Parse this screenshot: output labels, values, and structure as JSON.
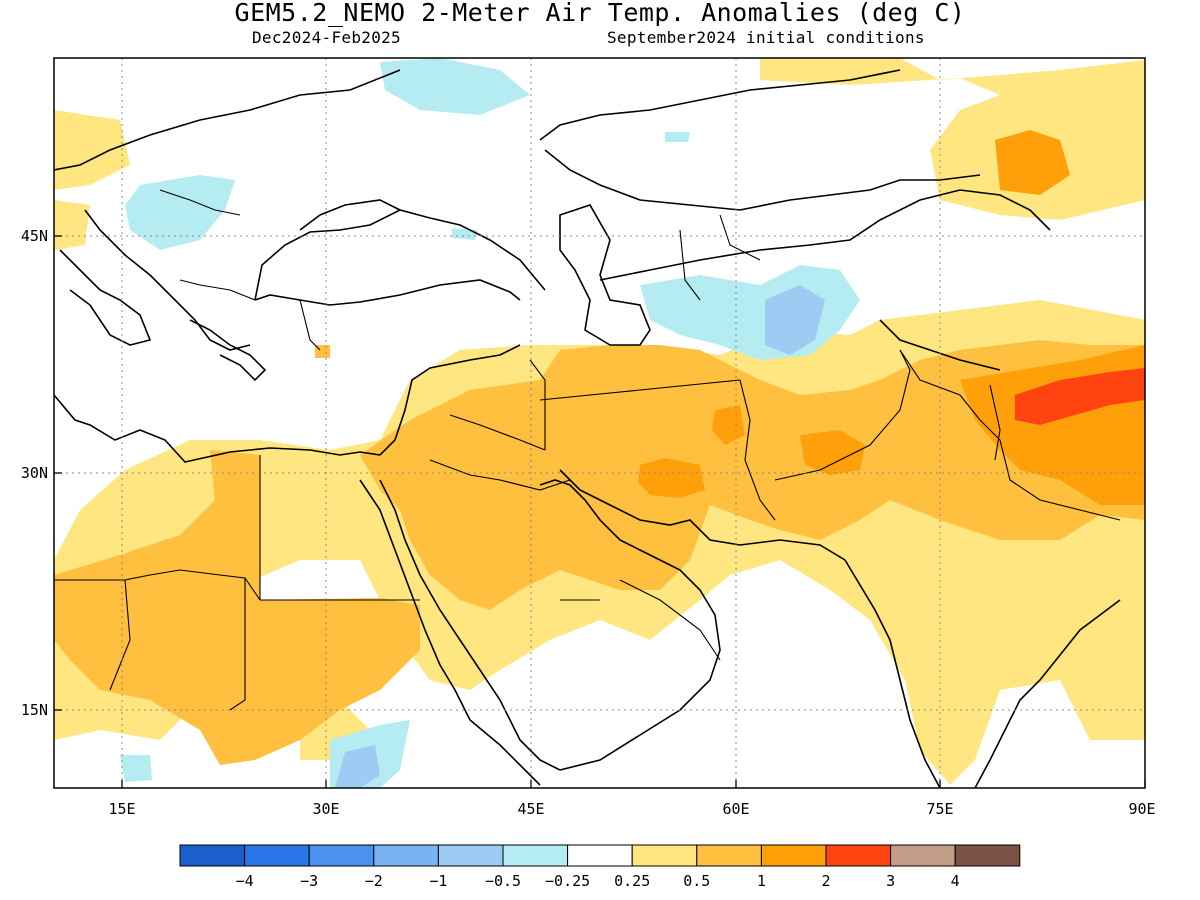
{
  "title": "GEM5.2_NEMO 2-Meter Air Temp. Anomalies (deg C)",
  "subtitle_left": "Dec2024-Feb2025",
  "subtitle_right": "September2024 initial conditions",
  "axes": {
    "lon_ticks": [
      "15E",
      "30E",
      "45E",
      "60E",
      "75E",
      "90E"
    ],
    "lat_ticks": [
      "45N",
      "30N",
      "15N"
    ],
    "lon_range": [
      10,
      90
    ],
    "lat_range": [
      10,
      56
    ]
  },
  "legend": {
    "colors": [
      "#1a5fcc",
      "#2a75e8",
      "#4a92ee",
      "#79b3f1",
      "#9ccbf3",
      "#b4ecf2",
      "#ffffff",
      "#ffe680",
      "#ffc040",
      "#ffa00a",
      "#ff4412",
      "#c39c88",
      "#7a5246"
    ],
    "labels": [
      "-4",
      "-3",
      "-2",
      "-1",
      "-0.5",
      "-0.25",
      "0.25",
      "0.5",
      "1",
      "2",
      "3",
      "4"
    ]
  }
}
